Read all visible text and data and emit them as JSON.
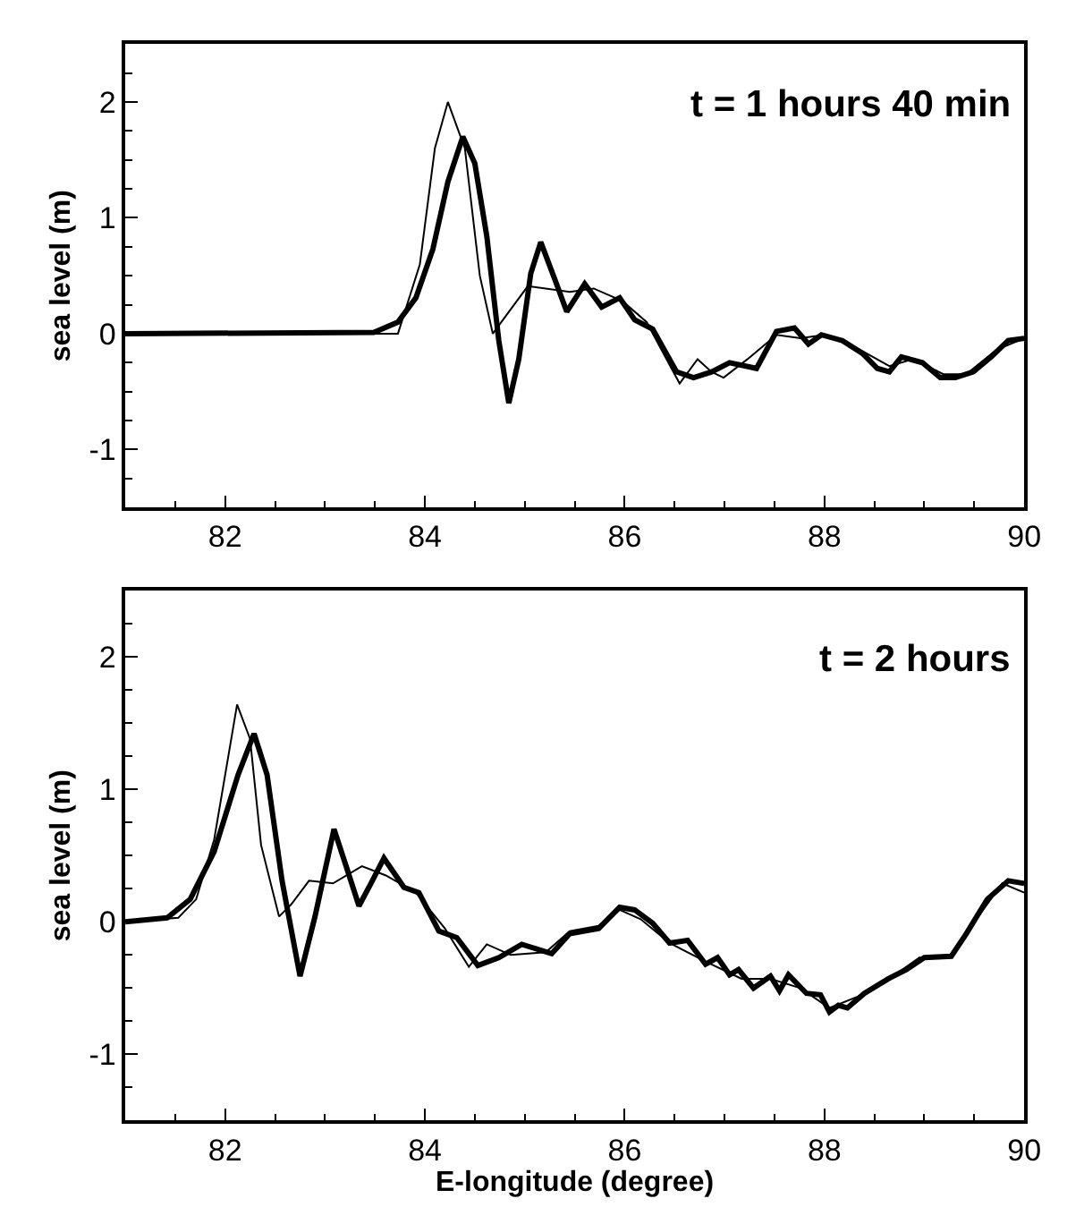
{
  "chart_data": [
    {
      "type": "line",
      "ylabel": "sea level (m)",
      "annotations": [
        "t = 1 hours 40 min"
      ],
      "xlim": [
        81,
        90
      ],
      "xticks": [
        82,
        84,
        86,
        88,
        90
      ],
      "ylim": [
        -1.5,
        2.5
      ],
      "yticks": [
        -1,
        0,
        1,
        2
      ],
      "line_style": "solid",
      "series": [
        {
          "color": "#000000",
          "x": [
            81,
            83.73,
            83.95,
            84.1,
            84.23,
            84.4,
            84.55,
            84.68,
            85.03,
            85.21,
            85.45,
            85.69,
            85.98,
            86.22,
            86.55,
            86.73,
            86.87,
            86.99,
            87.23,
            87.52,
            87.76,
            88.0,
            88.36,
            88.65,
            88.89,
            89.19,
            89.42,
            89.72,
            90
          ],
          "values": [
            0,
            0,
            0.6,
            1.6,
            2.0,
            1.6,
            0.5,
            0,
            0.41,
            0.39,
            0.36,
            0.39,
            0.28,
            0.1,
            -0.43,
            -0.22,
            -0.33,
            -0.38,
            -0.22,
            -0.01,
            -0.04,
            -0.01,
            -0.14,
            -0.28,
            -0.22,
            -0.35,
            -0.35,
            -0.14,
            -0.04
          ]
        },
        {
          "color": "#000000",
          "x": [
            81,
            83.49,
            83.73,
            83.91,
            84.08,
            84.23,
            84.38,
            84.5,
            84.62,
            84.74,
            84.84,
            84.94,
            85.06,
            85.16,
            85.3,
            85.42,
            85.6,
            85.77,
            85.95,
            86.1,
            86.28,
            86.52,
            86.69,
            86.87,
            87.05,
            87.32,
            87.52,
            87.7,
            87.84,
            87.97,
            88.18,
            88.38,
            88.53,
            88.65,
            88.77,
            88.98,
            89.16,
            89.31,
            89.49,
            89.67,
            89.84,
            90
          ],
          "values": [
            0,
            0.01,
            0.1,
            0.31,
            0.73,
            1.31,
            1.7,
            1.47,
            0.84,
            -0.06,
            -0.6,
            -0.22,
            0.52,
            0.79,
            0.47,
            0.19,
            0.43,
            0.23,
            0.31,
            0.12,
            0.04,
            -0.33,
            -0.38,
            -0.33,
            -0.25,
            -0.3,
            0.02,
            0.05,
            -0.09,
            -0.01,
            -0.06,
            -0.17,
            -0.3,
            -0.33,
            -0.2,
            -0.25,
            -0.38,
            -0.38,
            -0.33,
            -0.2,
            -0.06,
            -0.04
          ]
        }
      ]
    },
    {
      "type": "line",
      "xlabel": "E-longitude (degree)",
      "ylabel": "sea level (m)",
      "annotations": [
        "t = 2 hours"
      ],
      "xlim": [
        81,
        90
      ],
      "xticks": [
        82,
        84,
        86,
        88,
        90
      ],
      "ylim": [
        -1.5,
        2.5
      ],
      "yticks": [
        -1,
        0,
        1,
        2
      ],
      "line_style": "solid",
      "series": [
        {
          "color": "#000000",
          "x": [
            81,
            81.53,
            81.71,
            81.89,
            82.12,
            82.25,
            82.36,
            82.54,
            82.66,
            82.84,
            83.08,
            83.37,
            83.61,
            83.91,
            84.2,
            84.44,
            84.62,
            84.86,
            85.21,
            85.45,
            85.74,
            85.95,
            86.16,
            86.45,
            86.81,
            87.17,
            87.46,
            87.76,
            88.05,
            88.35,
            88.65,
            88.95,
            89.25,
            89.54,
            89.78,
            90
          ],
          "values": [
            0,
            0.03,
            0.17,
            0.62,
            1.64,
            1.38,
            0.58,
            0.04,
            0.13,
            0.31,
            0.29,
            0.42,
            0.35,
            0.22,
            -0.05,
            -0.34,
            -0.17,
            -0.25,
            -0.23,
            -0.07,
            -0.03,
            0.09,
            0.02,
            -0.16,
            -0.3,
            -0.43,
            -0.43,
            -0.5,
            -0.65,
            -0.56,
            -0.43,
            -0.27,
            -0.27,
            0.04,
            0.29,
            0.22
          ]
        },
        {
          "color": "#000000",
          "x": [
            81,
            81.42,
            81.65,
            81.89,
            82.13,
            82.29,
            82.42,
            82.57,
            82.75,
            82.9,
            83.09,
            83.22,
            83.34,
            83.46,
            83.59,
            83.79,
            83.94,
            84.14,
            84.32,
            84.53,
            84.74,
            84.97,
            85.27,
            85.45,
            85.74,
            85.95,
            86.1,
            86.28,
            86.45,
            86.63,
            86.81,
            86.93,
            87.05,
            87.14,
            87.29,
            87.46,
            87.55,
            87.64,
            87.82,
            87.96,
            88.05,
            88.14,
            88.23,
            88.4,
            88.64,
            88.82,
            89.0,
            89.27,
            89.42,
            89.63,
            89.84,
            90
          ],
          "values": [
            0,
            0.03,
            0.17,
            0.53,
            1.11,
            1.42,
            1.11,
            0.31,
            -0.41,
            0.04,
            0.7,
            0.4,
            0.12,
            0.29,
            0.48,
            0.26,
            0.22,
            -0.07,
            -0.12,
            -0.33,
            -0.27,
            -0.17,
            -0.24,
            -0.09,
            -0.05,
            0.11,
            0.09,
            -0.01,
            -0.16,
            -0.14,
            -0.32,
            -0.27,
            -0.4,
            -0.36,
            -0.5,
            -0.41,
            -0.52,
            -0.4,
            -0.54,
            -0.55,
            -0.68,
            -0.63,
            -0.65,
            -0.54,
            -0.43,
            -0.36,
            -0.27,
            -0.26,
            -0.09,
            0.17,
            0.31,
            0.29
          ]
        }
      ]
    }
  ]
}
